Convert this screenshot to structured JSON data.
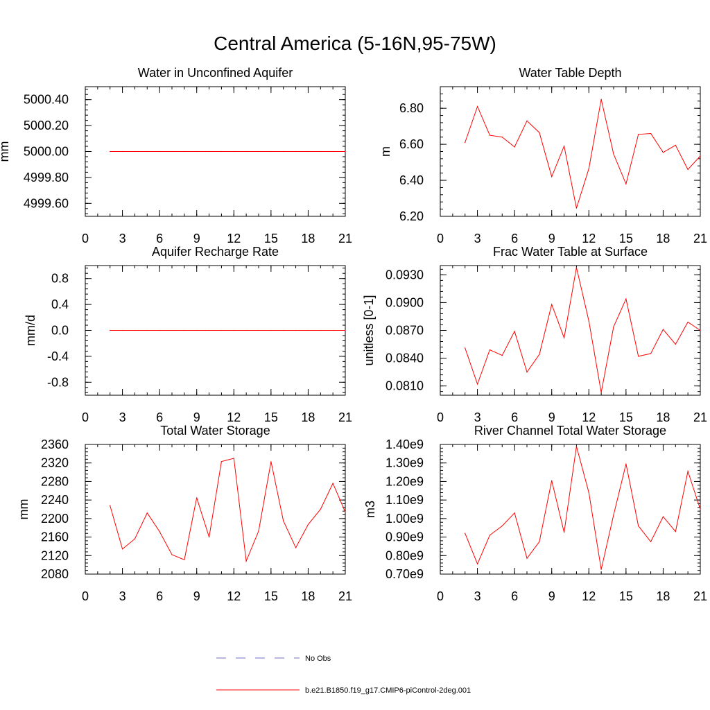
{
  "title": "Central America (5-16N,95-75W)",
  "legend": {
    "entries": [
      {
        "label": "No Obs",
        "color": "#6f6fc8",
        "dash": "dashed"
      },
      {
        "label": "b.e21.B1850.f19_g17.CMIP6-piControl-2deg.001",
        "color": "#ff0000",
        "dash": "solid"
      }
    ]
  },
  "chart_data": [
    {
      "type": "line",
      "title": "Water in Unconfined Aquifer",
      "ylabel": "mm",
      "xlim": [
        0,
        21
      ],
      "ylim": [
        4999.5,
        5000.5
      ],
      "xticks": [
        0,
        3,
        6,
        9,
        12,
        15,
        18,
        21
      ],
      "yticks": [
        4999.6,
        4999.8,
        5000.0,
        5000.2,
        5000.4
      ],
      "ytick_labels": [
        "4999.60",
        "4999.80",
        "5000.00",
        "5000.20",
        "5000.40"
      ],
      "series": [
        {
          "color": "#ff0000",
          "x": [
            2,
            3,
            4,
            5,
            6,
            7,
            8,
            9,
            10,
            11,
            12,
            13,
            14,
            15,
            16,
            17,
            18,
            19,
            20,
            21
          ],
          "y": [
            5000,
            5000,
            5000,
            5000,
            5000,
            5000,
            5000,
            5000,
            5000,
            5000,
            5000,
            5000,
            5000,
            5000,
            5000,
            5000,
            5000,
            5000,
            5000,
            5000
          ]
        }
      ]
    },
    {
      "type": "line",
      "title": "Water Table Depth",
      "ylabel": "m",
      "xlim": [
        0,
        21
      ],
      "ylim": [
        6.2,
        6.92
      ],
      "xticks": [
        0,
        3,
        6,
        9,
        12,
        15,
        18,
        21
      ],
      "yticks": [
        6.2,
        6.4,
        6.6,
        6.8
      ],
      "ytick_labels": [
        "6.20",
        "6.40",
        "6.60",
        "6.80"
      ],
      "series": [
        {
          "color": "#ff0000",
          "x": [
            2,
            3,
            4,
            5,
            6,
            7,
            8,
            9,
            10,
            11,
            12,
            13,
            14,
            15,
            16,
            17,
            18,
            19,
            20,
            21
          ],
          "y": [
            6.61,
            6.81,
            6.65,
            6.64,
            6.585,
            6.73,
            6.665,
            6.42,
            6.59,
            6.245,
            6.465,
            6.85,
            6.545,
            6.38,
            6.655,
            6.66,
            6.555,
            6.595,
            6.46,
            6.535
          ]
        }
      ]
    },
    {
      "type": "line",
      "title": "Aquifer Recharge Rate",
      "ylabel": "mm/d",
      "xlim": [
        0,
        21
      ],
      "ylim": [
        -1.0,
        1.0
      ],
      "xticks": [
        0,
        3,
        6,
        9,
        12,
        15,
        18,
        21
      ],
      "yticks": [
        -0.8,
        -0.4,
        0.0,
        0.4,
        0.8
      ],
      "ytick_labels": [
        "-0.8",
        "-0.4",
        "0.0",
        "0.4",
        "0.8"
      ],
      "series": [
        {
          "color": "#ff0000",
          "x": [
            2,
            3,
            4,
            5,
            6,
            7,
            8,
            9,
            10,
            11,
            12,
            13,
            14,
            15,
            16,
            17,
            18,
            19,
            20,
            21
          ],
          "y": [
            0,
            0,
            0,
            0,
            0,
            0,
            0,
            0,
            0,
            0,
            0,
            0,
            0,
            0,
            0,
            0,
            0,
            0,
            0,
            0
          ]
        }
      ]
    },
    {
      "type": "line",
      "title": "Frac Water Table at Surface",
      "ylabel": "unitless [0-1]",
      "xlim": [
        0,
        21
      ],
      "ylim": [
        0.08,
        0.094
      ],
      "xticks": [
        0,
        3,
        6,
        9,
        12,
        15,
        18,
        21
      ],
      "yticks": [
        0.081,
        0.084,
        0.087,
        0.09,
        0.093
      ],
      "ytick_labels": [
        "0.0810",
        "0.0840",
        "0.0870",
        "0.0900",
        "0.0930"
      ],
      "series": [
        {
          "color": "#ff0000",
          "x": [
            2,
            3,
            4,
            5,
            6,
            7,
            8,
            9,
            10,
            11,
            12,
            13,
            14,
            15,
            16,
            17,
            18,
            19,
            20,
            21
          ],
          "y": [
            0.0851,
            0.0812,
            0.0849,
            0.0843,
            0.0869,
            0.0825,
            0.0844,
            0.0898,
            0.0862,
            0.0938,
            0.088,
            0.0803,
            0.0874,
            0.0904,
            0.0842,
            0.0845,
            0.0871,
            0.0855,
            0.0879,
            0.087
          ]
        }
      ]
    },
    {
      "type": "line",
      "title": "Total Water Storage",
      "ylabel": "mm",
      "xlim": [
        0,
        21
      ],
      "ylim": [
        2080,
        2360
      ],
      "xticks": [
        0,
        3,
        6,
        9,
        12,
        15,
        18,
        21
      ],
      "yticks": [
        2080,
        2120,
        2160,
        2200,
        2240,
        2280,
        2320,
        2360
      ],
      "ytick_labels": [
        "2080",
        "2120",
        "2160",
        "2200",
        "2240",
        "2280",
        "2320",
        "2360"
      ],
      "series": [
        {
          "color": "#ff0000",
          "x": [
            2,
            3,
            4,
            5,
            6,
            7,
            8,
            9,
            10,
            11,
            12,
            13,
            14,
            15,
            16,
            17,
            18,
            19,
            20,
            21
          ],
          "y": [
            2228,
            2134,
            2156,
            2212,
            2172,
            2122,
            2111,
            2245,
            2160,
            2323,
            2330,
            2108,
            2173,
            2323,
            2195,
            2137,
            2187,
            2220,
            2276,
            2214
          ]
        }
      ]
    },
    {
      "type": "line",
      "title": "River Channel Total Water Storage",
      "ylabel": "m3",
      "xlim": [
        0,
        21
      ],
      "ylim": [
        700000000.0,
        1400000000.0
      ],
      "xticks": [
        0,
        3,
        6,
        9,
        12,
        15,
        18,
        21
      ],
      "yticks": [
        700000000.0,
        800000000.0,
        900000000.0,
        1000000000.0,
        1100000000.0,
        1200000000.0,
        1300000000.0,
        1400000000.0
      ],
      "ytick_labels": [
        "0.70e9",
        "0.80e9",
        "0.90e9",
        "1.00e9",
        "1.10e9",
        "1.20e9",
        "1.30e9",
        "1.40e9"
      ],
      "series": [
        {
          "color": "#ff0000",
          "x": [
            2,
            3,
            4,
            5,
            6,
            7,
            8,
            9,
            10,
            11,
            12,
            13,
            14,
            15,
            16,
            17,
            18,
            19,
            20,
            21
          ],
          "y": [
            920000000.0,
            755000000.0,
            910000000.0,
            960000000.0,
            1030000000.0,
            785000000.0,
            875000000.0,
            1205000000.0,
            925000000.0,
            1390000000.0,
            1140000000.0,
            725000000.0,
            1020000000.0,
            1295000000.0,
            960000000.0,
            875000000.0,
            1010000000.0,
            930000000.0,
            1255000000.0,
            1050000000.0
          ]
        }
      ]
    }
  ]
}
